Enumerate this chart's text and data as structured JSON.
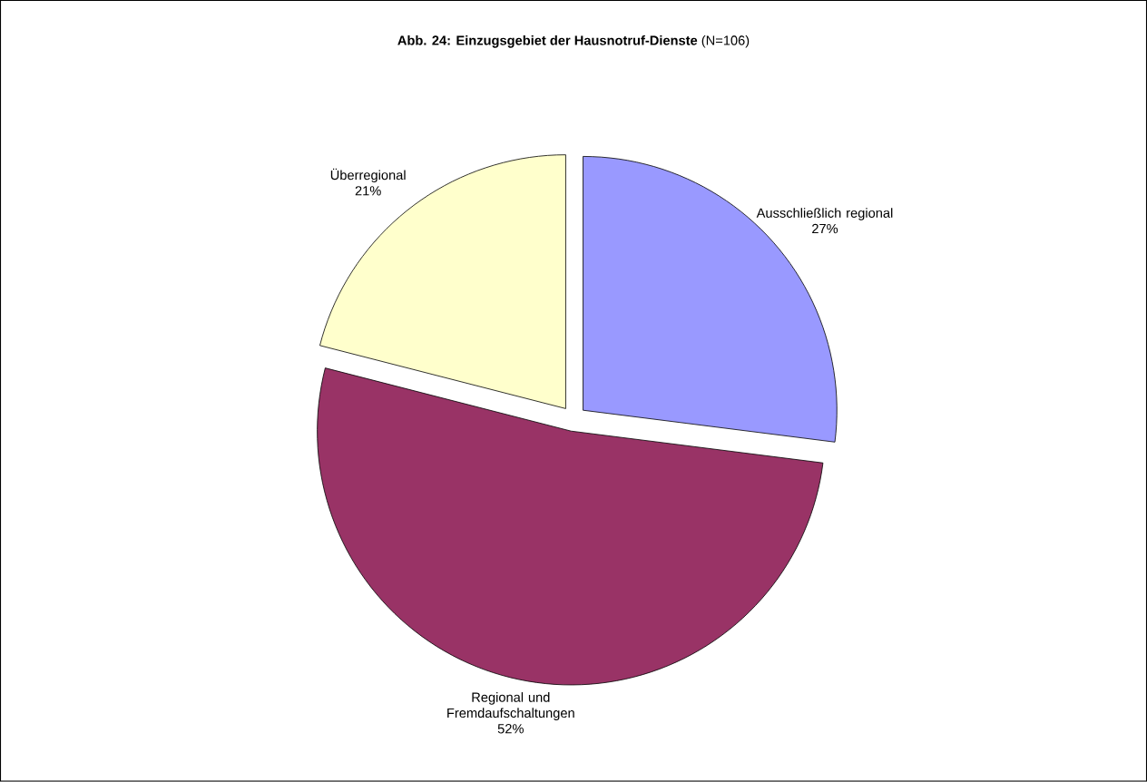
{
  "chart_data": {
    "type": "pie",
    "title": "**Abb. 24: Einzugsgebiet der Hausnotruf-Dienste** (N=106)",
    "categories": [
      "Ausschließlich regional",
      "Regional und Fremdaufschaltungen",
      "Überregional"
    ],
    "values": [
      27,
      52,
      21
    ],
    "value_labels": [
      "27%",
      "52%",
      "21%"
    ],
    "colors": [
      "#9999ff",
      "#993366",
      "#ffffcc"
    ]
  }
}
